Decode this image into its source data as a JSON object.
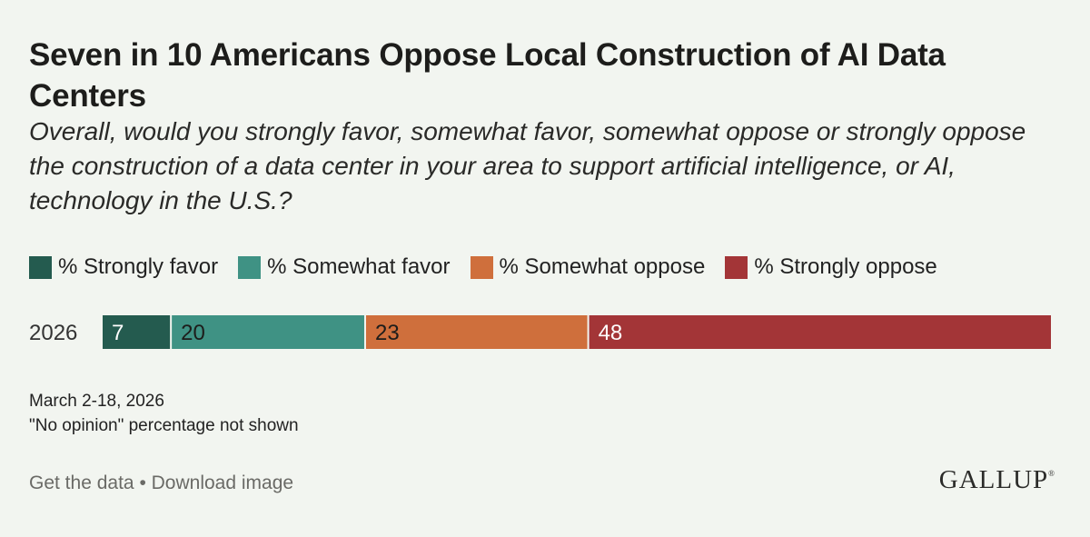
{
  "header": {
    "title": "Seven in 10 Americans Oppose Local Construction of AI Data Centers",
    "subtitle": "Overall, would you strongly favor, somewhat favor, somewhat oppose or strongly oppose the construction of a data center in your area to support artificial intelligence, or AI, technology in the U.S.?"
  },
  "chart_data": {
    "type": "bar",
    "orientation": "horizontal",
    "stacked": true,
    "title": "Seven in 10 Americans Oppose Local Construction of AI Data Centers",
    "subtitle": "Overall, would you strongly favor, somewhat favor, somewhat oppose or strongly oppose the construction of a data center in your area to support artificial intelligence, or AI, technology in the U.S.?",
    "categories": [
      "2026"
    ],
    "series": [
      {
        "name": "% Strongly favor",
        "values": [
          7
        ],
        "color": "#245b4f"
      },
      {
        "name": "% Somewhat favor",
        "values": [
          20
        ],
        "color": "#3f9284"
      },
      {
        "name": "% Somewhat oppose",
        "values": [
          23
        ],
        "color": "#cf6f3c"
      },
      {
        "name": "% Strongly oppose",
        "values": [
          48
        ],
        "color": "#a33537"
      }
    ],
    "legend_position": "top",
    "grid": false
  },
  "notes": {
    "date": "March 2-18, 2026",
    "footnote": "\"No opinion\" percentage not shown"
  },
  "footer": {
    "get_data": "Get the data",
    "separator": "•",
    "download": "Download image",
    "logo": "GALLUP",
    "logo_mark": "®"
  }
}
